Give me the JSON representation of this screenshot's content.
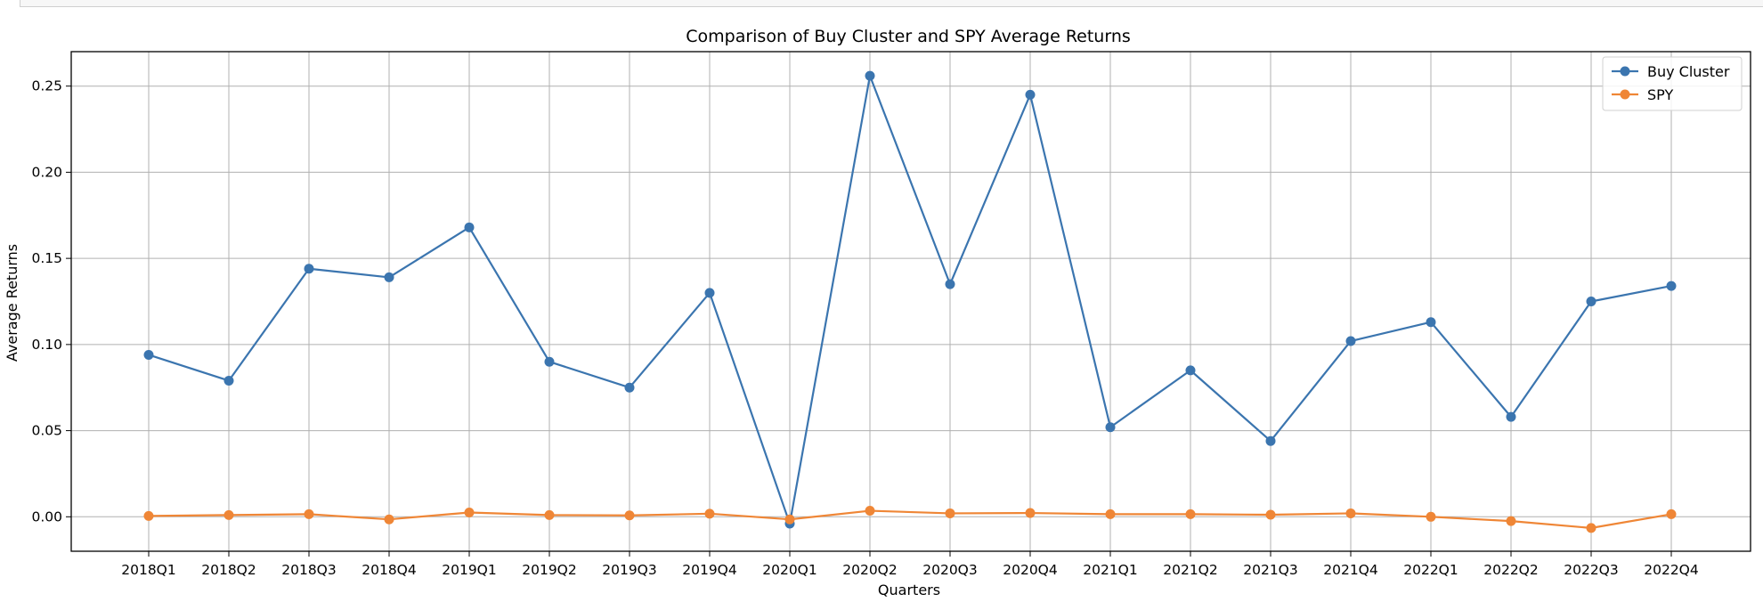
{
  "colors": {
    "buy_cluster": "#3b75af",
    "spy": "#ef8636",
    "grid": "#b0b0b0"
  },
  "chart_data": {
    "type": "line",
    "title": "Comparison of Buy Cluster and SPY Average Returns",
    "xlabel": "Quarters",
    "ylabel": "Average Returns",
    "categories": [
      "2018Q1",
      "2018Q2",
      "2018Q3",
      "2018Q4",
      "2019Q1",
      "2019Q2",
      "2019Q3",
      "2019Q4",
      "2020Q1",
      "2020Q2",
      "2020Q3",
      "2020Q4",
      "2021Q1",
      "2021Q2",
      "2021Q3",
      "2021Q4",
      "2022Q1",
      "2022Q2",
      "2022Q3",
      "2022Q4"
    ],
    "yticks": [
      "0.00",
      "0.05",
      "0.10",
      "0.15",
      "0.20",
      "0.25"
    ],
    "ylim": [
      -0.02,
      0.27
    ],
    "grid": true,
    "legend_position": "top-right",
    "series": [
      {
        "name": "Buy Cluster",
        "marker": "circle",
        "values": [
          0.094,
          0.079,
          0.144,
          0.139,
          0.168,
          0.09,
          0.075,
          0.13,
          -0.004,
          0.256,
          0.135,
          0.245,
          0.052,
          0.085,
          0.044,
          0.102,
          0.113,
          0.058,
          0.125,
          0.134
        ]
      },
      {
        "name": "SPY",
        "marker": "circle",
        "values": [
          0.0005,
          0.001,
          0.0015,
          -0.0015,
          0.0025,
          0.001,
          0.0008,
          0.0018,
          -0.0015,
          0.0035,
          0.002,
          0.0022,
          0.0015,
          0.0015,
          0.0012,
          0.002,
          0.0,
          -0.0025,
          -0.0065,
          0.0015
        ]
      }
    ]
  }
}
